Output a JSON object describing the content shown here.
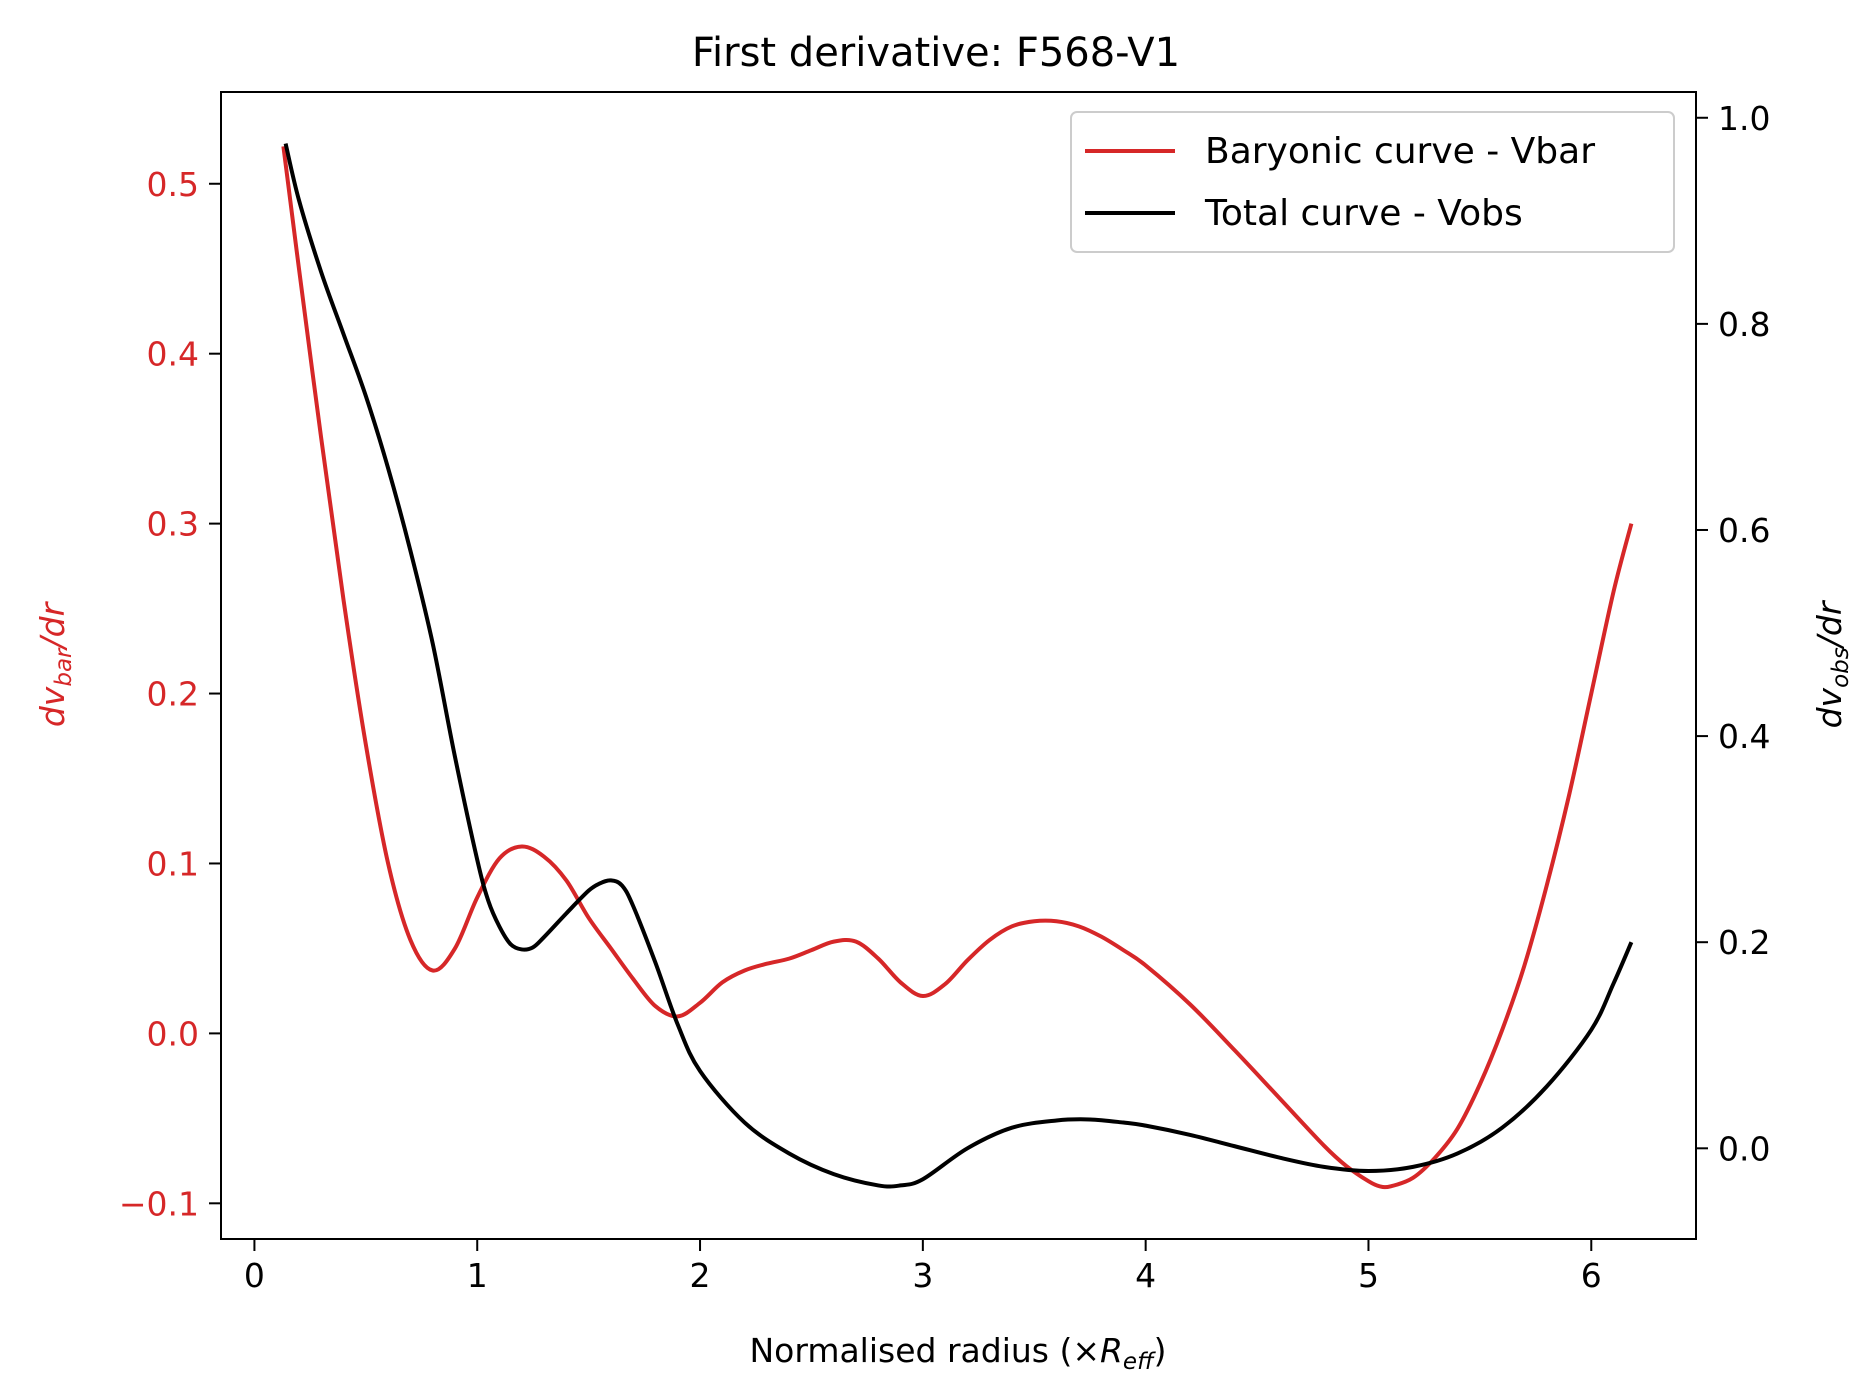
{
  "chart_data": {
    "type": "line",
    "title": "First derivative: F568-V1",
    "xlabel": {
      "main": "Normalised radius (×",
      "sym": "R",
      "sub": "eff",
      "close": ")"
    },
    "ylabel_left": {
      "pre": "dv",
      "sub": "bar",
      "post": "/dr"
    },
    "ylabel_right": {
      "pre": "dv",
      "sub": "obs",
      "post": "/dr"
    },
    "xlim": [
      -0.15,
      6.47
    ],
    "ylim_left": [
      -0.121,
      0.554
    ],
    "ylim_right": [
      -0.088,
      1.025
    ],
    "x_ticks": [
      0,
      1,
      2,
      3,
      4,
      5,
      6
    ],
    "x_tick_labels": [
      "0",
      "1",
      "2",
      "3",
      "4",
      "5",
      "6"
    ],
    "y_left_ticks": [
      -0.1,
      0.0,
      0.1,
      0.2,
      0.3,
      0.4,
      0.5
    ],
    "y_left_tick_labels": [
      "−0.1",
      "0.0",
      "0.1",
      "0.2",
      "0.3",
      "0.4",
      "0.5"
    ],
    "y_right_ticks": [
      0.0,
      0.2,
      0.4,
      0.6,
      0.8,
      1.0
    ],
    "y_right_tick_labels": [
      "0.0",
      "0.2",
      "0.4",
      "0.6",
      "0.8",
      "1.0"
    ],
    "legend_position": "top-right",
    "colors": {
      "vbar": "#d62728",
      "vobs": "#000000",
      "left_axis": "#d62728",
      "right_axis": "#000000"
    },
    "series": [
      {
        "name": "Baryonic curve - Vbar",
        "axis": "left",
        "x": [
          0.13,
          0.2,
          0.3,
          0.4,
          0.5,
          0.6,
          0.7,
          0.8,
          0.9,
          1.0,
          1.1,
          1.2,
          1.3,
          1.4,
          1.5,
          1.6,
          1.7,
          1.8,
          1.9,
          2.0,
          2.1,
          2.2,
          2.3,
          2.4,
          2.5,
          2.6,
          2.7,
          2.8,
          2.9,
          3.0,
          3.1,
          3.2,
          3.3,
          3.4,
          3.5,
          3.6,
          3.7,
          3.8,
          3.9,
          4.0,
          4.2,
          4.4,
          4.6,
          4.8,
          4.9,
          5.0,
          5.05,
          5.1,
          5.2,
          5.3,
          5.4,
          5.5,
          5.6,
          5.7,
          5.8,
          5.9,
          6.0,
          6.1,
          6.18
        ],
        "y": [
          0.522,
          0.45,
          0.35,
          0.255,
          0.17,
          0.1,
          0.055,
          0.037,
          0.05,
          0.08,
          0.103,
          0.11,
          0.104,
          0.09,
          0.068,
          0.05,
          0.032,
          0.016,
          0.01,
          0.018,
          0.03,
          0.037,
          0.041,
          0.044,
          0.049,
          0.054,
          0.054,
          0.044,
          0.03,
          0.022,
          0.029,
          0.043,
          0.055,
          0.063,
          0.066,
          0.066,
          0.063,
          0.057,
          0.049,
          0.04,
          0.017,
          -0.01,
          -0.038,
          -0.066,
          -0.078,
          -0.087,
          -0.09,
          -0.09,
          -0.085,
          -0.073,
          -0.056,
          -0.03,
          0.002,
          0.04,
          0.087,
          0.14,
          0.2,
          0.26,
          0.3
        ]
      },
      {
        "name": "Total curve - Vobs",
        "axis": "right",
        "x": [
          0.14,
          0.2,
          0.3,
          0.4,
          0.5,
          0.6,
          0.7,
          0.8,
          0.9,
          1.0,
          1.05,
          1.1,
          1.15,
          1.2,
          1.25,
          1.3,
          1.4,
          1.5,
          1.55,
          1.6,
          1.65,
          1.7,
          1.8,
          1.9,
          2.0,
          2.2,
          2.4,
          2.6,
          2.8,
          2.9,
          3.0,
          3.2,
          3.4,
          3.6,
          3.75,
          3.9,
          4.0,
          4.2,
          4.4,
          4.6,
          4.8,
          5.0,
          5.2,
          5.4,
          5.6,
          5.8,
          6.0,
          6.1,
          6.18
        ],
        "y": [
          0.975,
          0.92,
          0.85,
          0.79,
          0.73,
          0.66,
          0.58,
          0.49,
          0.38,
          0.28,
          0.24,
          0.215,
          0.198,
          0.193,
          0.195,
          0.205,
          0.228,
          0.25,
          0.257,
          0.26,
          0.255,
          0.235,
          0.18,
          0.12,
          0.075,
          0.025,
          -0.005,
          -0.025,
          -0.036,
          -0.036,
          -0.03,
          0.0,
          0.02,
          0.027,
          0.028,
          0.025,
          0.022,
          0.013,
          0.002,
          -0.009,
          -0.018,
          -0.022,
          -0.018,
          -0.005,
          0.02,
          0.06,
          0.115,
          0.16,
          0.2
        ]
      }
    ]
  }
}
